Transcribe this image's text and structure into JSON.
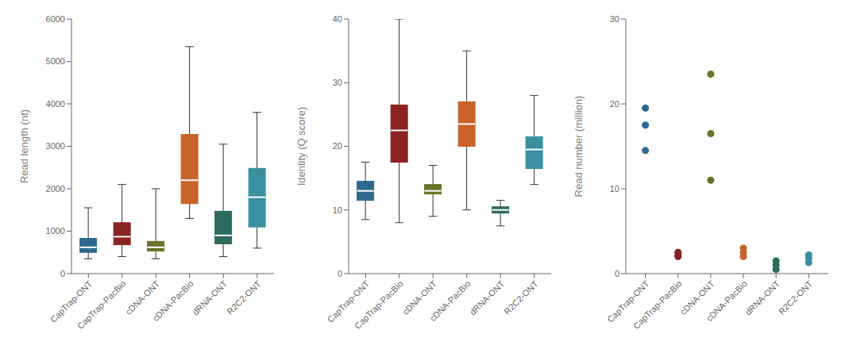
{
  "chart_data": [
    {
      "type": "box",
      "categories": [
        "CapTrap-ONT",
        "CapTrap-PacBio",
        "cDNA-ONT",
        "cDNA-PacBio",
        "dRNA-ONT",
        "R2C2-ONT"
      ],
      "colors": [
        "#2e6a8e",
        "#8b2222",
        "#6b7229",
        "#c8632a",
        "#2e6a5e",
        "#3a8fa0"
      ],
      "ylabel": "Read length (nt)",
      "ylim": [
        0,
        6000
      ],
      "yticks": [
        0,
        1000,
        2000,
        3000,
        4000,
        5000,
        6000
      ],
      "grid": false,
      "boxes": [
        {
          "whislo": 350,
          "q1": 500,
          "med": 620,
          "q3": 830,
          "whishi": 1550
        },
        {
          "whislo": 400,
          "q1": 680,
          "med": 870,
          "q3": 1200,
          "whishi": 2100
        },
        {
          "whislo": 350,
          "q1": 530,
          "med": 620,
          "q3": 760,
          "whishi": 2000
        },
        {
          "whislo": 1300,
          "q1": 1650,
          "med": 2200,
          "q3": 3280,
          "whishi": 5350
        },
        {
          "whislo": 400,
          "q1": 700,
          "med": 900,
          "q3": 1470,
          "whishi": 3050
        },
        {
          "whislo": 600,
          "q1": 1100,
          "med": 1800,
          "q3": 2480,
          "whishi": 3800
        }
      ]
    },
    {
      "type": "box",
      "categories": [
        "CapTrap-ONT",
        "CapTrap-PacBio",
        "cDNA-ONT",
        "cDNA-PacBio",
        "dRNA-ONT",
        "R2C2-ONT"
      ],
      "colors": [
        "#2e6a8e",
        "#8b2222",
        "#6b7229",
        "#c8632a",
        "#2e6a5e",
        "#3a8fa0"
      ],
      "ylabel": "Identity (Q score)",
      "ylim": [
        0,
        40
      ],
      "yticks": [
        0,
        10,
        20,
        30,
        40
      ],
      "grid": false,
      "boxes": [
        {
          "whislo": 8.5,
          "q1": 11.5,
          "med": 13.0,
          "q3": 14.5,
          "whishi": 17.5
        },
        {
          "whislo": 8.0,
          "q1": 17.5,
          "med": 22.5,
          "q3": 26.5,
          "whishi": 40.0
        },
        {
          "whislo": 9.0,
          "q1": 12.5,
          "med": 13.0,
          "q3": 14.0,
          "whishi": 17.0
        },
        {
          "whislo": 10.0,
          "q1": 20.0,
          "med": 23.5,
          "q3": 27.0,
          "whishi": 35.0
        },
        {
          "whislo": 7.5,
          "q1": 9.5,
          "med": 10.0,
          "q3": 10.5,
          "whishi": 11.5
        },
        {
          "whislo": 14.0,
          "q1": 16.5,
          "med": 19.5,
          "q3": 21.5,
          "whishi": 28.0
        }
      ]
    },
    {
      "type": "scatter",
      "categories": [
        "CapTrap-ONT",
        "CapTrap-PacBio",
        "cDNA-ONT",
        "cDNA-PacBio",
        "dRNA-ONT",
        "R2C2-ONT"
      ],
      "colors": [
        "#2e6a8e",
        "#8b2222",
        "#6b7229",
        "#c8632a",
        "#2e6a5e",
        "#3a8fa0"
      ],
      "ylabel": "Read number (million)",
      "ylim": [
        0,
        30
      ],
      "yticks": [
        0,
        10,
        20,
        30
      ],
      "grid": false,
      "values": [
        [
          14.5,
          17.5,
          19.5
        ],
        [
          2.0,
          2.2,
          2.5
        ],
        [
          11.0,
          16.5,
          23.5
        ],
        [
          2.0,
          2.5,
          3.0
        ],
        [
          0.5,
          1.0,
          1.5
        ],
        [
          1.3,
          1.8,
          2.2
        ]
      ]
    }
  ]
}
